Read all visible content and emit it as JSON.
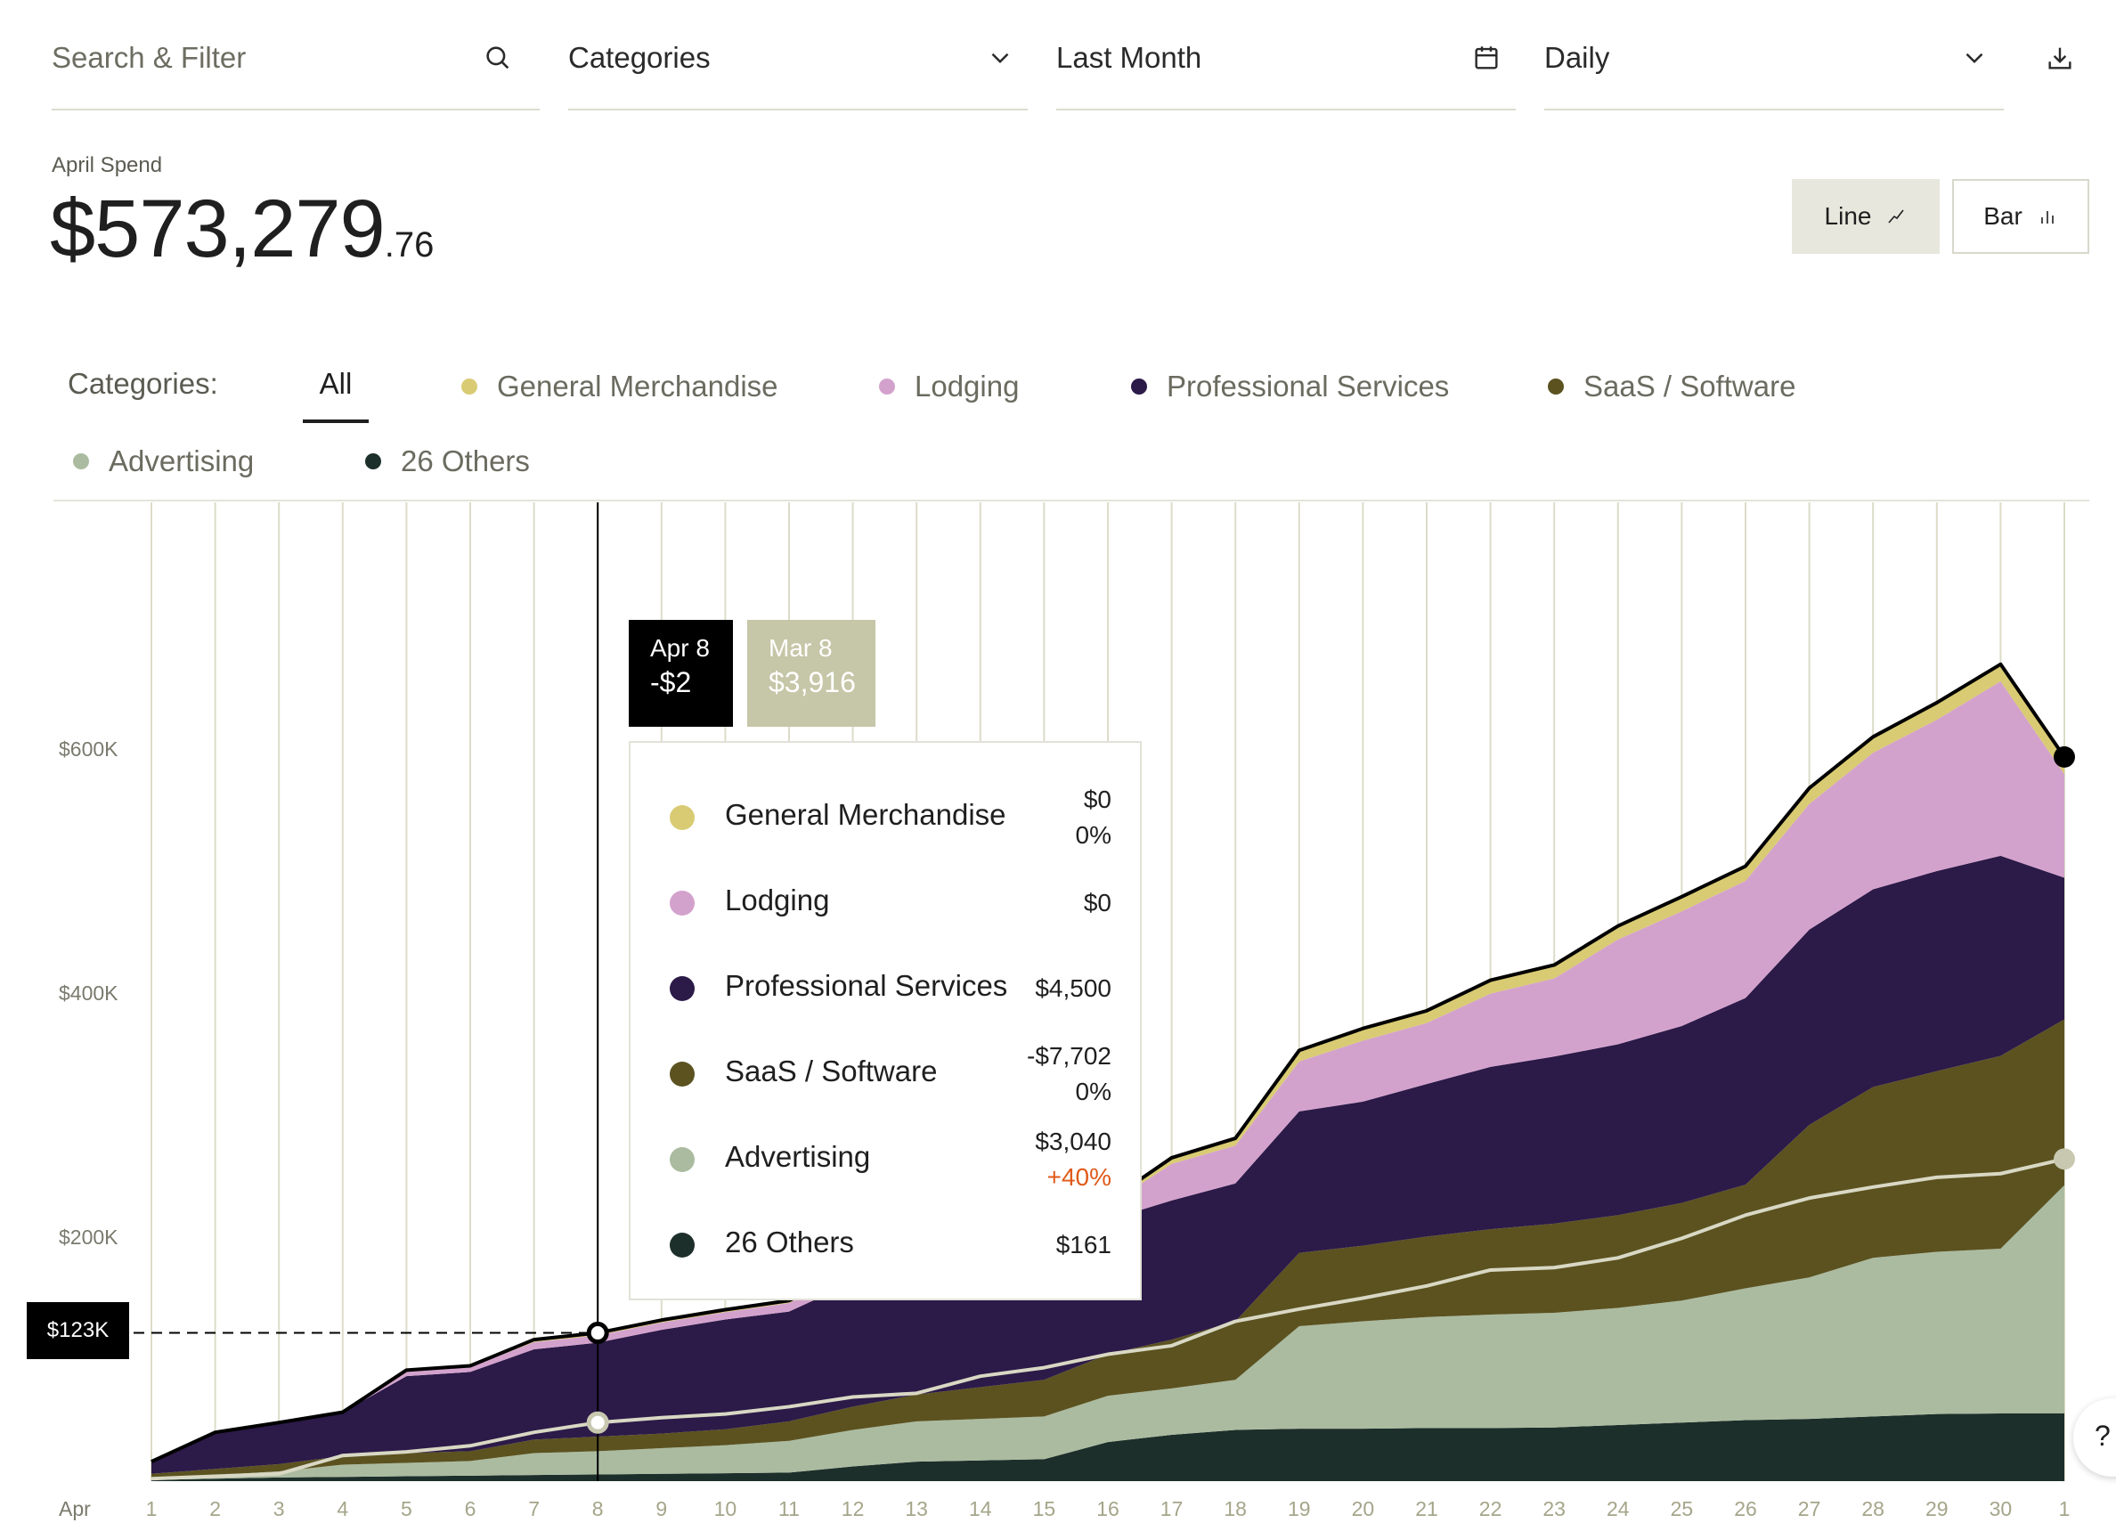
{
  "filters": {
    "search_placeholder": "Search & Filter",
    "categories_label": "Categories",
    "date_range_label": "Last Month",
    "interval_label": "Daily"
  },
  "icons": {
    "search": "search-icon",
    "categories_dropdown": "chevron-down-icon",
    "date": "calendar-icon",
    "interval_dropdown": "chevron-down-icon",
    "download": "download-icon",
    "line_toggle": "line-chart-icon",
    "bar_toggle": "bar-chart-icon"
  },
  "summary": {
    "label": "April Spend",
    "amount_main": "$573,279",
    "amount_cents": ".76"
  },
  "view_toggle": {
    "line_label": "Line",
    "bar_label": "Bar",
    "active": "Line"
  },
  "categories": {
    "label": "Categories:",
    "all_label": "All",
    "items": [
      {
        "name": "General Merchandise",
        "color": "#d9cb73"
      },
      {
        "name": "Lodging",
        "color": "#d3a2cc"
      },
      {
        "name": "Professional Services",
        "color": "#2c1a48"
      },
      {
        "name": "SaaS / Software",
        "color": "#5b5220"
      },
      {
        "name": "Advertising",
        "color": "#abbba0"
      },
      {
        "name": "26 Others",
        "color": "#1d2f2a"
      }
    ]
  },
  "tooltip": {
    "current_date": "Apr 8",
    "current_value": "-$2",
    "compare_date": "Mar 8",
    "compare_value": "$3,916",
    "rows": [
      {
        "name": "General Merchandise",
        "value": "$0",
        "change": "0%",
        "change_color": "#1f1f1f",
        "color": "#d9cb73"
      },
      {
        "name": "Lodging",
        "value": "$0",
        "change": "",
        "change_color": "#1f1f1f",
        "color": "#d3a2cc"
      },
      {
        "name": "Professional Services",
        "value": "$4,500",
        "change": "",
        "change_color": "#1f1f1f",
        "color": "#2c1a48"
      },
      {
        "name": "SaaS / Software",
        "value": "-$7,702",
        "change": "0%",
        "change_color": "#1f1f1f",
        "color": "#5b5220"
      },
      {
        "name": "Advertising",
        "value": "$3,040",
        "change": "+40%",
        "change_color": "#e05a1a",
        "color": "#abbba0"
      },
      {
        "name": "26 Others",
        "value": "$161",
        "change": "",
        "change_color": "#1f1f1f",
        "color": "#1d2f2a"
      }
    ],
    "y_marker_label": "$123K"
  },
  "help_label": "?",
  "chart_data": {
    "type": "area",
    "stacked": true,
    "x_label_prefix": "Apr",
    "categories": [
      "1",
      "2",
      "3",
      "4",
      "5",
      "6",
      "7",
      "8",
      "9",
      "10",
      "11",
      "12",
      "13",
      "14",
      "15",
      "16",
      "17",
      "18",
      "19",
      "20",
      "21",
      "22",
      "23",
      "24",
      "25",
      "26",
      "27",
      "28",
      "29",
      "30",
      "1"
    ],
    "y_ticks": [
      {
        "value": 200000,
        "label": "$200K"
      },
      {
        "value": 400000,
        "label": "$400K"
      },
      {
        "value": 600000,
        "label": "$600K"
      }
    ],
    "ylim": [
      0,
      800000
    ],
    "grid": "vertical",
    "highlight_index": 7,
    "series": [
      {
        "name": "26 Others",
        "color": "#1d2f2a",
        "values": [
          1000,
          2000,
          3000,
          3500,
          4000,
          4500,
          5000,
          5500,
          6000,
          6500,
          7000,
          12000,
          16000,
          17000,
          18000,
          32000,
          38000,
          42000,
          43000,
          43000,
          43500,
          43500,
          44000,
          46000,
          48000,
          50000,
          51000,
          53000,
          55000,
          55500,
          55500
        ]
      },
      {
        "name": "Advertising",
        "color": "#abbba0",
        "values": [
          2000,
          3000,
          5000,
          10000,
          11000,
          12000,
          18000,
          19000,
          21000,
          23000,
          26000,
          30000,
          33000,
          34000,
          35000,
          38000,
          38000,
          41000,
          84000,
          88000,
          91000,
          93000,
          94000,
          96000,
          100000,
          108000,
          116000,
          130000,
          133000,
          135000,
          187000
        ]
      },
      {
        "name": "SaaS / Software",
        "color": "#5b5220",
        "values": [
          3000,
          5000,
          6000,
          7000,
          8000,
          8000,
          11000,
          12000,
          12000,
          13000,
          16000,
          19000,
          22000,
          26000,
          30000,
          34000,
          40000,
          48000,
          60000,
          62000,
          66000,
          70000,
          73000,
          76000,
          80000,
          85000,
          125000,
          140000,
          148000,
          158000,
          136000
        ]
      },
      {
        "name": "Professional Services",
        "color": "#2c1a48",
        "values": [
          10000,
          30000,
          34000,
          36000,
          63000,
          65000,
          74000,
          77000,
          85000,
          90000,
          90000,
          102000,
          102000,
          104000,
          110000,
          110000,
          114000,
          113000,
          116000,
          118000,
          125000,
          133000,
          137000,
          140000,
          145000,
          153000,
          160000,
          162000,
          164000,
          164000,
          116000
        ]
      },
      {
        "name": "Lodging",
        "color": "#d3a2cc",
        "values": [
          0,
          0,
          0,
          0,
          4000,
          4000,
          6000,
          6000,
          6000,
          6000,
          7000,
          8000,
          9000,
          10000,
          11000,
          12000,
          30000,
          31000,
          41000,
          50000,
          50000,
          60000,
          64000,
          86000,
          94000,
          96000,
          103000,
          112000,
          124000,
          143000,
          85000
        ]
      },
      {
        "name": "General Merchandise",
        "color": "#d9cb73",
        "values": [
          0,
          0,
          0,
          0,
          1000,
          1000,
          2000,
          2000,
          2000,
          2000,
          2000,
          2000,
          2000,
          2000,
          3000,
          3000,
          5000,
          6000,
          9000,
          10000,
          10000,
          11000,
          11000,
          11000,
          12000,
          12000,
          13000,
          13000,
          14000,
          14000,
          14000
        ]
      }
    ],
    "comparison_series": {
      "name": "Mar",
      "values": [
        2000,
        4000,
        6000,
        21000,
        24000,
        29000,
        40000,
        48000,
        52000,
        55000,
        61000,
        69000,
        72000,
        86000,
        93000,
        104000,
        111000,
        131000,
        141000,
        150000,
        160000,
        173000,
        175000,
        183000,
        199000,
        218000,
        232000,
        241000,
        249000,
        252000,
        264000
      ]
    }
  }
}
